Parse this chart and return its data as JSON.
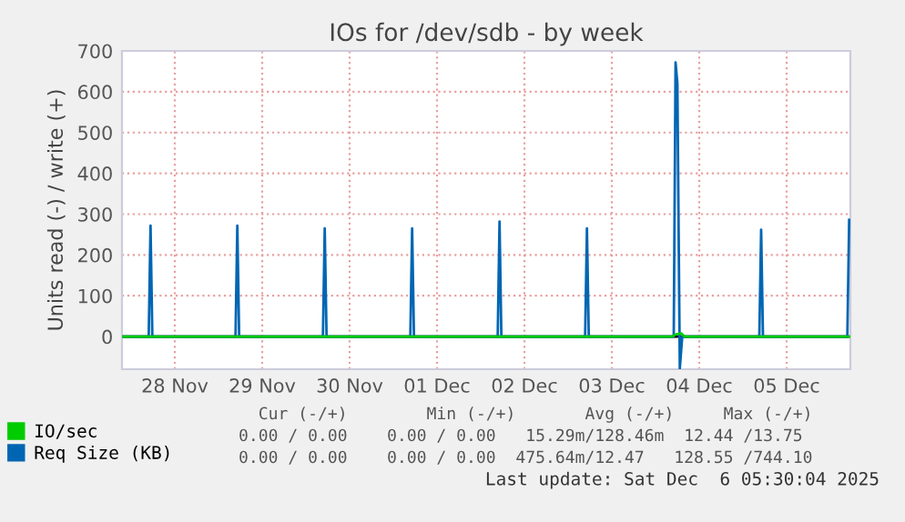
{
  "chart_data": {
    "type": "line",
    "title": "IOs for /dev/sdb - by week",
    "ylabel": "Units read (-) / write (+)",
    "xlim": [
      "2025-11-27T21:30",
      "2025-12-06T05:30"
    ],
    "xticks": [
      {
        "value": "2025-11-28T12:00",
        "label": "28 Nov"
      },
      {
        "value": "2025-11-29T12:00",
        "label": "29 Nov"
      },
      {
        "value": "2025-11-30T12:00",
        "label": "30 Nov"
      },
      {
        "value": "2025-12-01T12:00",
        "label": "01 Dec"
      },
      {
        "value": "2025-12-02T12:00",
        "label": "02 Dec"
      },
      {
        "value": "2025-12-03T12:00",
        "label": "03 Dec"
      },
      {
        "value": "2025-12-04T12:00",
        "label": "04 Dec"
      },
      {
        "value": "2025-12-05T12:00",
        "label": "05 Dec"
      }
    ],
    "ylim": [
      -80,
      700
    ],
    "yticks": [
      0,
      100,
      200,
      300,
      400,
      500,
      600,
      700
    ],
    "grid": true,
    "legend": "bottom left",
    "ref_lines": [
      {
        "axis": "y",
        "value": 0,
        "color": "#000000"
      }
    ],
    "series": [
      {
        "name": "IO/sec",
        "color": "#00cc00",
        "x": [
          "2025-11-27T21:30",
          "2025-12-04T04:30",
          "2025-12-04T05:30",
          "2025-12-04T07:00",
          "2025-12-04T08:00",
          "2025-12-06T05:30"
        ],
        "values": [
          0,
          0,
          5,
          8,
          0,
          0
        ]
      },
      {
        "name": "Req Size (KB)",
        "color": "#0066b3",
        "x": [
          "2025-11-27T21:30",
          "2025-11-28T04:50",
          "2025-11-28T05:20",
          "2025-11-28T05:50",
          "2025-11-29T04:40",
          "2025-11-29T05:10",
          "2025-11-29T05:40",
          "2025-11-30T04:40",
          "2025-11-30T05:10",
          "2025-11-30T05:40",
          "2025-12-01T04:40",
          "2025-12-01T05:10",
          "2025-12-01T05:40",
          "2025-12-02T04:40",
          "2025-12-02T05:10",
          "2025-12-02T05:40",
          "2025-12-03T04:40",
          "2025-12-03T05:10",
          "2025-12-03T05:40",
          "2025-12-04T05:00",
          "2025-12-04T05:30",
          "2025-12-04T06:00",
          "2025-12-04T06:40",
          "2025-12-04T07:20",
          "2025-12-05T04:30",
          "2025-12-05T05:00",
          "2025-12-05T05:30",
          "2025-12-06T04:40",
          "2025-12-06T05:10"
        ],
        "values": [
          0,
          0,
          272,
          0,
          0,
          272,
          0,
          0,
          265,
          0,
          0,
          265,
          0,
          0,
          282,
          0,
          0,
          265,
          0,
          0,
          672,
          620,
          -78,
          0,
          0,
          262,
          0,
          0,
          286
        ]
      }
    ],
    "annotations": [
      "  Cur (-/+)        Min (-/+)       Avg (-/+)     Max (-/+)",
      "0.00 / 0.00    0.00 / 0.00   15.29m/128.46m  12.44 /13.75",
      "0.00 / 0.00    0.00 / 0.00  475.64m/12.47   128.55 /744.10",
      "Last update: Sat Dec  6 05:30:04 2025"
    ]
  }
}
